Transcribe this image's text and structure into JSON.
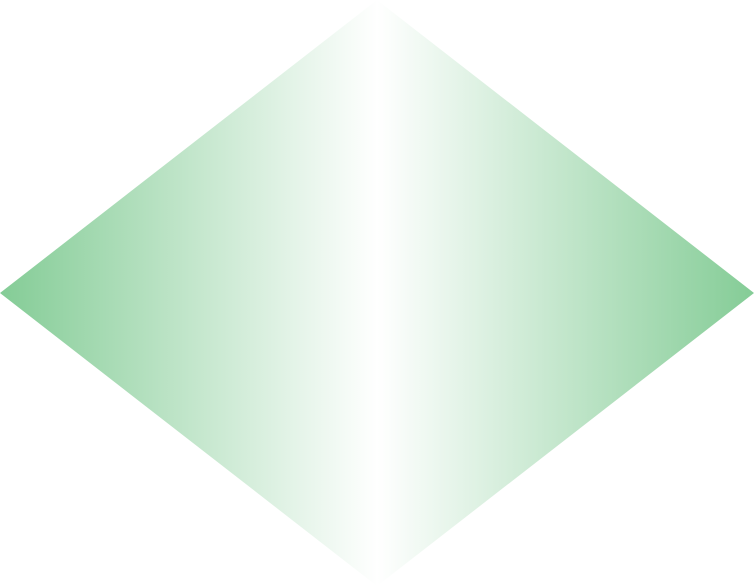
{
  "shape": {
    "type": "diamond",
    "fill_edge_color": "#84cc96",
    "fill_center_color": "#ffffff"
  }
}
